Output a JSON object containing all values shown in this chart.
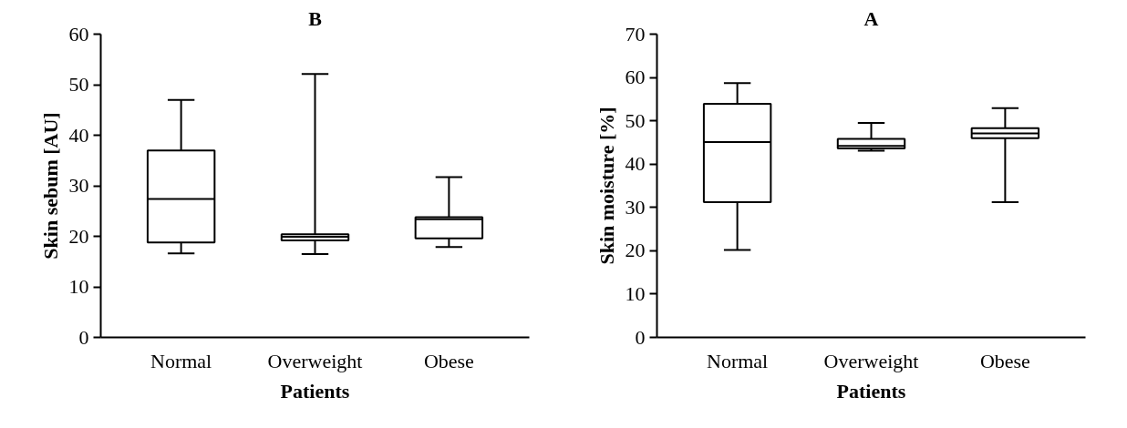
{
  "chart_data": [
    {
      "type": "box",
      "title": "B",
      "xlabel": "Patients",
      "ylabel": "Skin sebum [AU]",
      "categories": [
        "Normal",
        "Overweight",
        "Obese"
      ],
      "ylim": [
        0,
        60
      ],
      "yticks": [
        0,
        10,
        20,
        30,
        40,
        50,
        60
      ],
      "grid": false,
      "boxes": [
        {
          "low": 16.6,
          "q1": 18.8,
          "median": 27.4,
          "q3": 37.0,
          "high": 47.0
        },
        {
          "low": 16.5,
          "q1": 19.2,
          "median": 19.9,
          "q3": 20.4,
          "high": 52.1
        },
        {
          "low": 17.9,
          "q1": 19.6,
          "median": 23.4,
          "q3": 23.8,
          "high": 31.7
        }
      ]
    },
    {
      "type": "box",
      "title": "A",
      "xlabel": "Patients",
      "ylabel": "Skin moisture [%]",
      "categories": [
        "Normal",
        "Overweight",
        "Obese"
      ],
      "ylim": [
        0,
        70
      ],
      "yticks": [
        0,
        10,
        20,
        30,
        40,
        50,
        60,
        70
      ],
      "grid": false,
      "boxes": [
        {
          "low": 20.2,
          "q1": 31.2,
          "median": 45.1,
          "q3": 53.9,
          "high": 58.7
        },
        {
          "low": 43.1,
          "q1": 43.6,
          "median": 44.2,
          "q3": 45.8,
          "high": 49.5
        },
        {
          "low": 31.2,
          "q1": 46.0,
          "median": 47.1,
          "q3": 48.3,
          "high": 52.9
        }
      ]
    }
  ]
}
